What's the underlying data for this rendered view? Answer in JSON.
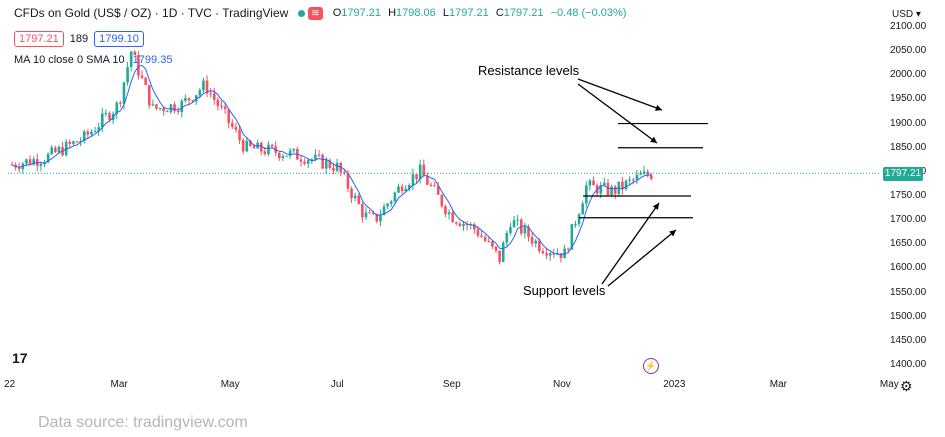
{
  "header": {
    "title": "CFDs on Gold (US$ / OZ) · 1D · TVC · TradingView",
    "wave_icon": "≋",
    "open_label": "O",
    "open": "1797.21",
    "high_label": "H",
    "high": "1798.06",
    "low_label": "L",
    "low": "1797.21",
    "close_label": "C",
    "close": "1797.21",
    "change": "−0.48 (−0.03%)",
    "bid": "1797.21",
    "spread": "189",
    "ask": "1799.10"
  },
  "indicator": {
    "label": "MA 10 close 0 SMA 10",
    "value": "1799.35"
  },
  "currency": "USD",
  "current_price_tag": "1797.21",
  "annotations": {
    "resistance": "Resistance levels",
    "support": "Support levels"
  },
  "footer_source": "Data source: tradingview.com",
  "chart_data": {
    "type": "line",
    "series": [
      {
        "name": "CFDs on Gold (US$ / OZ)",
        "x": [
          "2022-01-01",
          "2022-01-20",
          "2022-02-10",
          "2022-03-01",
          "2022-03-08",
          "2022-03-20",
          "2022-04-05",
          "2022-04-18",
          "2022-05-10",
          "2022-05-31",
          "2022-06-13",
          "2022-06-30",
          "2022-07-15",
          "2022-07-21",
          "2022-08-05",
          "2022-08-15",
          "2022-09-01",
          "2022-09-15",
          "2022-09-28",
          "2022-10-04",
          "2022-10-21",
          "2022-11-03",
          "2022-11-15",
          "2022-11-30",
          "2022-12-15",
          "2022-12-22"
        ],
        "values": [
          1815,
          1830,
          1870,
          1940,
          2050,
          1930,
          1940,
          1980,
          1850,
          1840,
          1830,
          1810,
          1710,
          1700,
          1775,
          1800,
          1710,
          1680,
          1620,
          1700,
          1645,
          1630,
          1770,
          1760,
          1790,
          1797
        ]
      }
    ],
    "ma_series": {
      "name": "MA 10 close 0 SMA 10"
    },
    "y_ticks": [
      "2100.00",
      "2050.00",
      "2000.00",
      "1950.00",
      "1900.00",
      "1850.00",
      "1800.00",
      "1750.00",
      "1700.00",
      "1650.00",
      "1600.00",
      "1550.00",
      "1500.00",
      "1450.00",
      "1400.00"
    ],
    "ylim": [
      1400,
      2100
    ],
    "x_ticks": [
      {
        "label": "22",
        "date": "2022-01-01"
      },
      {
        "label": "Mar",
        "date": "2022-03-01"
      },
      {
        "label": "May",
        "date": "2022-05-01"
      },
      {
        "label": "Jul",
        "date": "2022-07-01"
      },
      {
        "label": "Sep",
        "date": "2022-09-01"
      },
      {
        "label": "Nov",
        "date": "2022-11-01"
      },
      {
        "label": "2023",
        "date": "2023-01-01"
      },
      {
        "label": "Mar",
        "date": "2023-03-01"
      },
      {
        "label": "May",
        "date": "2023-05-01"
      }
    ],
    "resistance_levels": [
      1900,
      1850
    ],
    "support_levels": [
      1750,
      1705
    ],
    "colors": {
      "up": "#22ab94",
      "down": "#f7525f",
      "ma": "#2962ff",
      "level": "#000000"
    }
  }
}
